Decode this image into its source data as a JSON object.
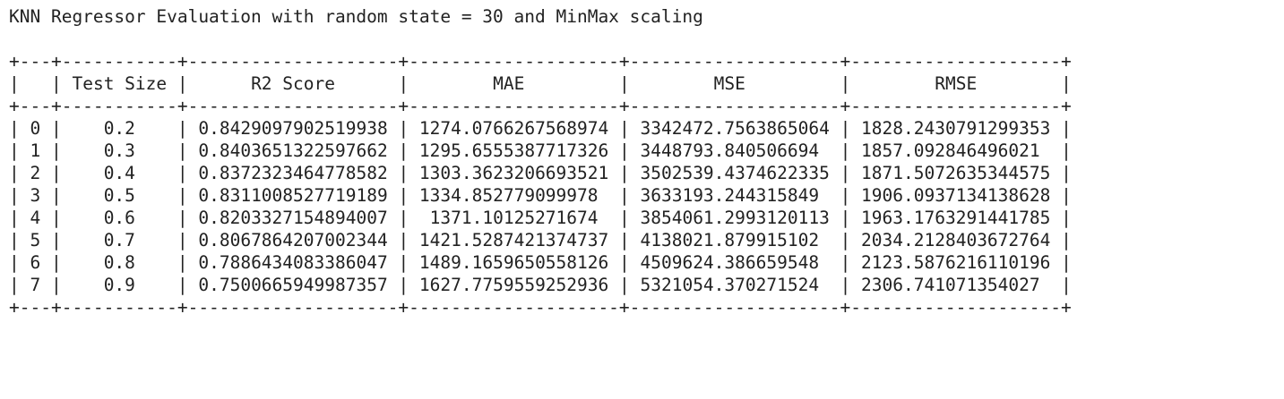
{
  "title": "KNN Regressor Evaluation with random state = 30 and MinMax scaling",
  "table": {
    "headers": [
      "",
      "Test Size",
      "R2 Score",
      "MAE",
      "MSE",
      "RMSE"
    ],
    "rows": [
      [
        "0",
        "0.2",
        "0.8429097902519938",
        "1274.0766267568974",
        "3342472.7563865064",
        "1828.2430791299353"
      ],
      [
        "1",
        "0.3",
        "0.8403651322597662",
        "1295.6555387717326",
        "3448793.840506694",
        "1857.092846496021"
      ],
      [
        "2",
        "0.4",
        "0.8372323464778582",
        "1303.3623206693521",
        "3502539.4374622335",
        "1871.5072635344575"
      ],
      [
        "3",
        "0.5",
        "0.8311008527719189",
        "1334.852779099978",
        "3633193.244315849",
        "1906.0937134138628"
      ],
      [
        "4",
        "0.6",
        "0.8203327154894007",
        "1371.10125271674",
        "3854061.2993120113",
        "1963.1763291441785"
      ],
      [
        "5",
        "0.7",
        "0.8067864207002344",
        "1421.5287421374737",
        "4138021.879915102",
        "2034.2128403672764"
      ],
      [
        "6",
        "0.8",
        "0.7886434083386047",
        "1489.1659650558126",
        "4509624.386659548",
        "2123.5876216110196"
      ],
      [
        "7",
        "0.9",
        "0.7500665949987357",
        "1627.7759559252936",
        "5321054.370271524",
        "2306.741071354027"
      ]
    ]
  }
}
